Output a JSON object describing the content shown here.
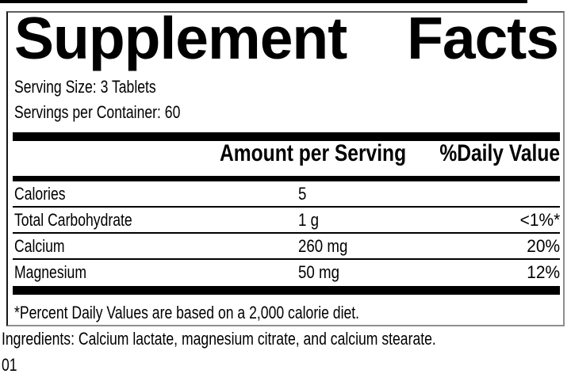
{
  "label": {
    "title": {
      "left_word": "Supplement",
      "right_word": "Facts"
    },
    "serving_size": "Serving Size: 3 Tablets",
    "servings_per_container": "Servings per Container: 60",
    "columns": {
      "amount": "Amount per Serving",
      "daily_value": "%Daily Value"
    },
    "rows": [
      {
        "nutrient": "Calories",
        "amount": "5",
        "daily_value": ""
      },
      {
        "nutrient": "Total Carbohydrate",
        "amount": "1 g",
        "daily_value": "<1%*"
      },
      {
        "nutrient": "Calcium",
        "amount": "260 mg",
        "daily_value": "20%"
      },
      {
        "nutrient": "Magnesium",
        "amount": "50 mg",
        "daily_value": "12%"
      }
    ],
    "footnote": "*Percent Daily Values are based on a 2,000 calorie diet."
  },
  "ingredients_line": "Ingredients: Calcium lactate, magnesium citrate, and calcium stearate.",
  "item_code": "01",
  "colors": {
    "ink": "#000000",
    "panel_border_dark": "#161616",
    "panel_border_shadow": "#8e8e8e",
    "background": "#ffffff"
  }
}
